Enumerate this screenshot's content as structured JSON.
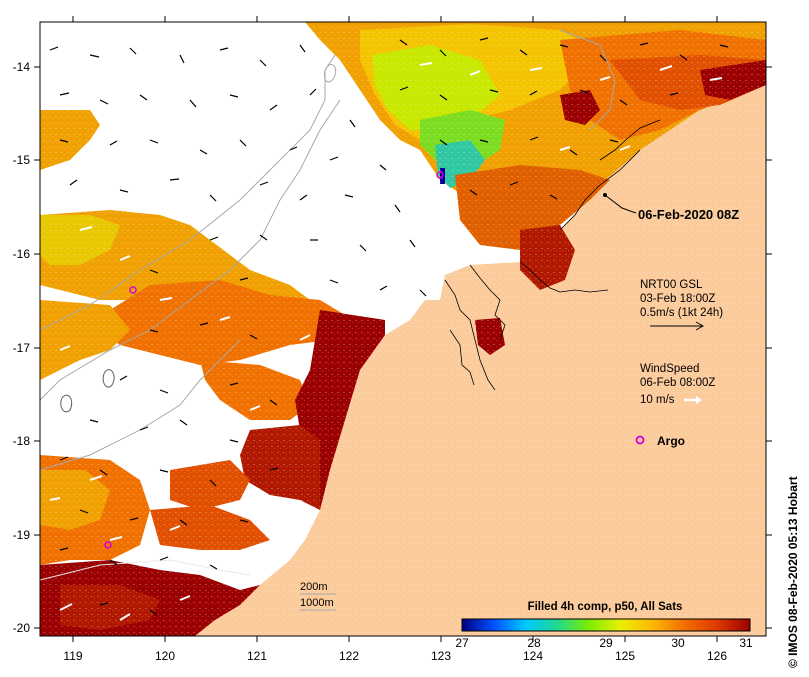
{
  "map": {
    "timestamp_label": "06-Feb-2020 08Z",
    "x_ticks": [
      "119",
      "120",
      "121",
      "122",
      "123",
      "124",
      "125",
      "126"
    ],
    "y_ticks": [
      "-14",
      "-15",
      "-16",
      "-17",
      "-18",
      "-19",
      "-20"
    ],
    "side_credit": "© IMOS 08-Feb-2020 05:13 Hobart"
  },
  "legend": {
    "current": {
      "line1": "NRT00 GSL",
      "line2": "03-Feb 18:00Z",
      "line3": "0.5m/s (1kt 24h)"
    },
    "wind": {
      "line1": "WindSpeed",
      "line2": "06-Feb 08:00Z",
      "line3": "10 m/s"
    },
    "argo_label": "Argo",
    "isobaths": [
      "200m",
      "1000m"
    ]
  },
  "colorbar": {
    "title": "Filled 4h comp, p50, All Sats",
    "ticks": [
      "27",
      "28",
      "29",
      "30",
      "31"
    ],
    "stops": [
      "#00007f",
      "#0050ff",
      "#00c8ff",
      "#20d890",
      "#7cec00",
      "#e8f000",
      "#ffb800",
      "#f07000",
      "#e03c00",
      "#9a0000"
    ]
  },
  "colors": {
    "land": "#fccb9c",
    "no_data": "#ffffff",
    "argo": "#d800d8"
  }
}
